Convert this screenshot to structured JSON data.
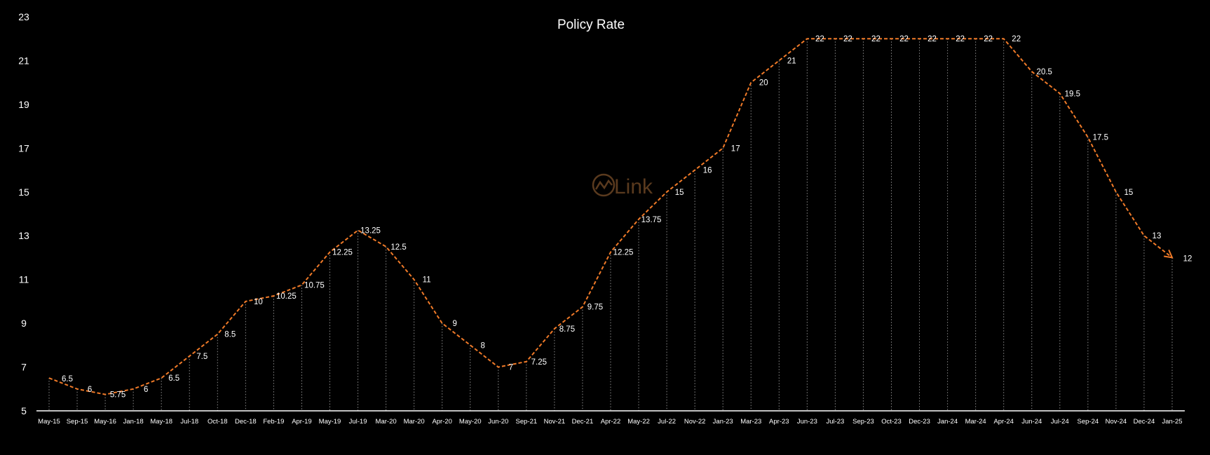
{
  "chart_data": {
    "type": "line",
    "title": "Policy Rate",
    "xlabel": "",
    "ylabel": "",
    "ylim": [
      5,
      23
    ],
    "yticks": [
      5,
      7,
      9,
      11,
      13,
      15,
      17,
      19,
      21,
      23
    ],
    "grid": "vertical dotted drop lines at each point",
    "legend": "none",
    "categories": [
      "May-15",
      "Sep-15",
      "May-16",
      "Jan-18",
      "May-18",
      "Jul-18",
      "Oct-18",
      "Dec-18",
      "Feb-19",
      "Apr-19",
      "May-19",
      "Jul-19",
      "Mar-20",
      "Mar-20",
      "Apr-20",
      "May-20",
      "Jun-20",
      "Sep-21",
      "Nov-21",
      "Dec-21",
      "Apr-22",
      "May-22",
      "Jul-22",
      "Nov-22",
      "Jan-23",
      "Mar-23",
      "Apr-23",
      "Jun-23",
      "Jul-23",
      "Sep-23",
      "Oct-23",
      "Dec-23",
      "Jan-24",
      "Mar-24",
      "Apr-24",
      "Jun-24",
      "Jul-24",
      "Sep-24",
      "Nov-24",
      "Dec-24",
      "Jan-25"
    ],
    "series": [
      {
        "values": [
          6.5,
          6,
          5.75,
          6,
          6.5,
          7.5,
          8.5,
          10,
          10.25,
          10.75,
          12.25,
          13.25,
          12.5,
          11,
          9,
          8,
          7,
          7.25,
          8.75,
          9.75,
          12.25,
          13.75,
          15,
          16,
          17,
          20,
          21,
          22,
          22,
          22,
          22,
          22,
          22,
          22,
          22,
          20.5,
          19.5,
          17.5,
          15,
          13,
          12
        ],
        "labels": [
          "6.5",
          "6",
          "5.75",
          "6",
          "6.5",
          "7.5",
          "8.5",
          "10",
          "10.25",
          "10.75",
          "12.25",
          "13.25",
          "12.5",
          "11",
          "9",
          "8",
          "7",
          "7.25",
          "8.75",
          "9.75",
          "12.25",
          "13.75",
          "15",
          "16",
          "17",
          "20",
          "21",
          "22",
          "22",
          "22",
          "22",
          "22",
          "22",
          "22",
          "22",
          "20.5",
          "19.5",
          "17.5",
          "15",
          "13",
          "12"
        ]
      }
    ],
    "colors": {
      "line": "#f07a28",
      "background": "#000000",
      "text": "#ffffff",
      "dropline": "#8c8c8c",
      "axis": "#ffffff"
    }
  },
  "watermark": {
    "text": "Link",
    "icon": "chart-logo-icon",
    "color": "#5a3a1e"
  }
}
